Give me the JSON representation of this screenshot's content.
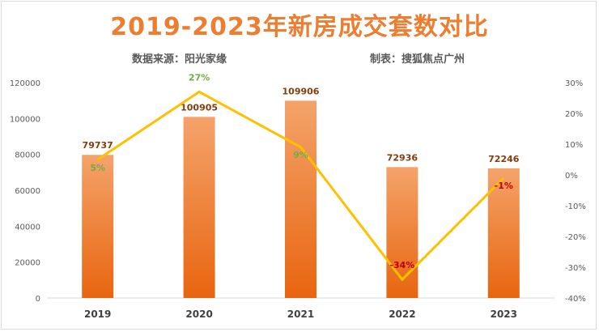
{
  "chart_data": {
    "type": "bar",
    "title": "2019-2023年新房成交套数对比",
    "source_note": "数据来源：阳光家缘",
    "maker_note": "制表：搜狐焦点广州",
    "categories": [
      "2019",
      "2020",
      "2021",
      "2022",
      "2023"
    ],
    "series": [
      {
        "type": "bar",
        "axis": "left",
        "values": [
          79737,
          100905,
          109906,
          72936,
          72246
        ],
        "labels": [
          "79737",
          "100905",
          "109906",
          "72936",
          "72246"
        ]
      },
      {
        "type": "line",
        "axis": "right",
        "values": [
          5,
          27,
          9,
          -34,
          -1
        ],
        "labels": [
          "5%",
          "27%",
          "9%",
          "-34%",
          "-1%"
        ]
      }
    ],
    "y_left": {
      "min": 0,
      "max": 120000,
      "ticks": [
        "0",
        "20000",
        "40000",
        "60000",
        "80000",
        "100000",
        "120000"
      ]
    },
    "y_right": {
      "min": -40,
      "max": 30,
      "ticks": [
        "-40%",
        "-30%",
        "-20%",
        "-10%",
        "0%",
        "10%",
        "20%",
        "30%"
      ]
    },
    "grid": false,
    "colors": {
      "bar_top": "#F4A36B",
      "bar_bottom": "#E8650F",
      "line": "#FFC000",
      "title": "#ED7D31",
      "bar_label": "#843C0C",
      "pct_positive": "#70AD47",
      "pct_negative": "#C00000"
    }
  }
}
